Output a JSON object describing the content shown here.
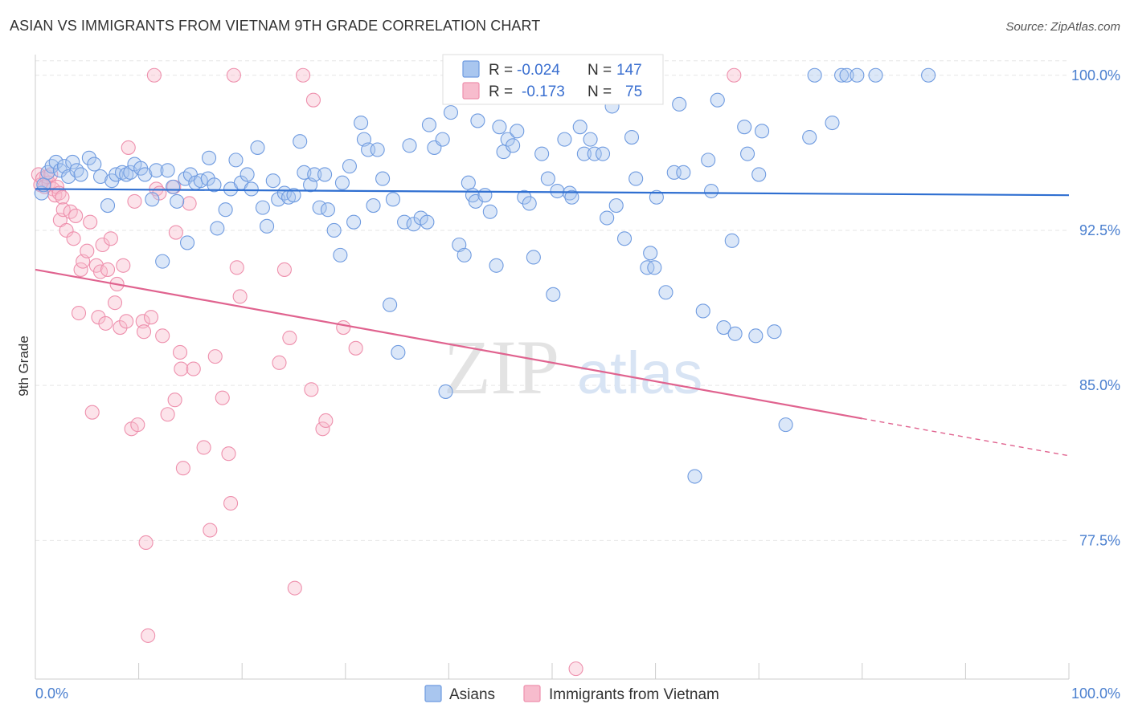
{
  "title": "ASIAN VS IMMIGRANTS FROM VIETNAM 9TH GRADE CORRELATION CHART",
  "source": "Source: ZipAtlas.com",
  "watermark": {
    "zip": "ZIP",
    "atlas": "atlas"
  },
  "stats": {
    "row1": {
      "r_label": "R =",
      "r_value": "-0.024",
      "n_label": "N =",
      "n_value": "147"
    },
    "row2": {
      "r_label": "R =",
      "r_value": "-0.173",
      "n_label": "N =",
      "n_value": "75"
    }
  },
  "legend": {
    "asians": "Asians",
    "vietnam": "Immigrants from Vietnam"
  },
  "colors": {
    "blue_fill": "#a9c6ef",
    "blue_stroke": "#6f9be0",
    "blue_line": "#2f6fd1",
    "pink_fill": "#f7bccd",
    "pink_stroke": "#ee90ad",
    "pink_line": "#e0638f",
    "grid": "#e6e6e6",
    "tick_text": "#4a7fcf"
  },
  "chart_data": {
    "type": "scatter",
    "title": "ASIAN VS IMMIGRANTS FROM VIETNAM 9TH GRADE CORRELATION CHART",
    "xlabel": "",
    "ylabel": "9th Grade",
    "xlim": [
      0,
      100
    ],
    "ylim": [
      70.8,
      101.0
    ],
    "x_tick_labels": [
      "0.0%",
      "100.0%"
    ],
    "y_ticks": [
      100.0,
      92.5,
      85.0,
      77.5
    ],
    "y_tick_labels": [
      "100.0%",
      "92.5%",
      "85.0%",
      "77.5%"
    ],
    "grid": true,
    "legend_position": "bottom",
    "series": [
      {
        "name": "Asians",
        "trend": {
          "x": [
            0,
            100
          ],
          "y": [
            94.5,
            94.2
          ]
        },
        "points": [
          [
            0.6,
            94.3
          ],
          [
            0.8,
            94.7
          ],
          [
            1.2,
            95.3
          ],
          [
            1.6,
            95.6
          ],
          [
            2.0,
            95.8
          ],
          [
            2.4,
            95.4
          ],
          [
            2.8,
            95.6
          ],
          [
            3.2,
            95.1
          ],
          [
            3.6,
            95.8
          ],
          [
            4.0,
            95.4
          ],
          [
            4.4,
            95.2
          ],
          [
            5.2,
            96.0
          ],
          [
            5.7,
            95.7
          ],
          [
            6.3,
            95.1
          ],
          [
            7.0,
            93.7
          ],
          [
            7.4,
            94.9
          ],
          [
            7.8,
            95.2
          ],
          [
            8.4,
            95.3
          ],
          [
            8.8,
            95.2
          ],
          [
            9.2,
            95.3
          ],
          [
            9.6,
            95.7
          ],
          [
            10.2,
            95.5
          ],
          [
            10.6,
            95.2
          ],
          [
            11.3,
            94.0
          ],
          [
            11.7,
            95.4
          ],
          [
            12.3,
            91.0
          ],
          [
            12.8,
            95.4
          ],
          [
            13.3,
            94.6
          ],
          [
            13.7,
            93.9
          ],
          [
            14.5,
            95.0
          ],
          [
            14.7,
            91.9
          ],
          [
            15.0,
            95.2
          ],
          [
            15.5,
            94.8
          ],
          [
            16.0,
            94.9
          ],
          [
            16.7,
            95.0
          ],
          [
            16.8,
            96.0
          ],
          [
            17.3,
            94.7
          ],
          [
            17.6,
            92.6
          ],
          [
            18.4,
            93.5
          ],
          [
            18.9,
            94.5
          ],
          [
            19.4,
            95.9
          ],
          [
            19.9,
            94.8
          ],
          [
            20.5,
            95.2
          ],
          [
            20.9,
            94.5
          ],
          [
            21.5,
            96.5
          ],
          [
            22.0,
            93.6
          ],
          [
            22.4,
            92.7
          ],
          [
            23.0,
            94.9
          ],
          [
            23.5,
            94.0
          ],
          [
            24.1,
            94.3
          ],
          [
            24.5,
            94.1
          ],
          [
            25.0,
            94.2
          ],
          [
            25.6,
            96.8
          ],
          [
            26.0,
            95.3
          ],
          [
            26.6,
            94.7
          ],
          [
            27.0,
            95.2
          ],
          [
            27.5,
            93.6
          ],
          [
            28.0,
            95.2
          ],
          [
            28.3,
            93.5
          ],
          [
            28.9,
            92.5
          ],
          [
            29.5,
            91.3
          ],
          [
            29.7,
            94.8
          ],
          [
            30.4,
            95.6
          ],
          [
            30.8,
            92.9
          ],
          [
            31.5,
            97.7
          ],
          [
            31.8,
            96.9
          ],
          [
            32.2,
            96.4
          ],
          [
            32.7,
            93.7
          ],
          [
            33.1,
            96.4
          ],
          [
            33.6,
            95.0
          ],
          [
            34.3,
            88.9
          ],
          [
            34.6,
            94.0
          ],
          [
            35.1,
            86.6
          ],
          [
            35.7,
            92.9
          ],
          [
            36.2,
            96.6
          ],
          [
            36.6,
            92.8
          ],
          [
            37.3,
            93.1
          ],
          [
            37.9,
            92.9
          ],
          [
            38.1,
            97.6
          ],
          [
            38.6,
            96.5
          ],
          [
            39.4,
            96.9
          ],
          [
            39.7,
            84.7
          ],
          [
            40.2,
            98.2
          ],
          [
            41.0,
            91.8
          ],
          [
            41.5,
            91.3
          ],
          [
            41.9,
            94.8
          ],
          [
            42.3,
            94.2
          ],
          [
            42.6,
            93.9
          ],
          [
            42.8,
            97.8
          ],
          [
            43.5,
            94.2
          ],
          [
            44.0,
            93.4
          ],
          [
            44.6,
            90.8
          ],
          [
            44.9,
            97.5
          ],
          [
            45.3,
            96.3
          ],
          [
            45.7,
            96.9
          ],
          [
            46.2,
            96.6
          ],
          [
            46.6,
            97.3
          ],
          [
            47.3,
            94.1
          ],
          [
            47.8,
            93.8
          ],
          [
            48.2,
            91.2
          ],
          [
            49.0,
            96.2
          ],
          [
            49.6,
            95.0
          ],
          [
            50.1,
            89.4
          ],
          [
            50.5,
            94.4
          ],
          [
            51.2,
            96.9
          ],
          [
            51.7,
            94.3
          ],
          [
            51.9,
            94.1
          ],
          [
            52.7,
            97.5
          ],
          [
            53.1,
            96.2
          ],
          [
            53.7,
            96.9
          ],
          [
            54.1,
            96.2
          ],
          [
            54.9,
            96.2
          ],
          [
            55.3,
            93.1
          ],
          [
            55.8,
            98.5
          ],
          [
            56.2,
            93.7
          ],
          [
            57.0,
            92.1
          ],
          [
            57.7,
            97.0
          ],
          [
            58.1,
            95.0
          ],
          [
            59.2,
            90.7
          ],
          [
            59.5,
            91.4
          ],
          [
            59.9,
            90.7
          ],
          [
            60.1,
            94.1
          ],
          [
            61.0,
            89.5
          ],
          [
            61.8,
            95.3
          ],
          [
            62.3,
            98.6
          ],
          [
            62.7,
            95.3
          ],
          [
            63.8,
            80.6
          ],
          [
            64.6,
            88.6
          ],
          [
            65.1,
            95.9
          ],
          [
            65.4,
            94.4
          ],
          [
            66.0,
            98.8
          ],
          [
            66.6,
            87.8
          ],
          [
            67.4,
            92.0
          ],
          [
            67.7,
            87.5
          ],
          [
            68.6,
            97.5
          ],
          [
            68.9,
            96.2
          ],
          [
            69.7,
            87.4
          ],
          [
            70.0,
            95.2
          ],
          [
            70.3,
            97.3
          ],
          [
            71.5,
            87.6
          ],
          [
            72.6,
            83.1
          ],
          [
            74.9,
            97.0
          ],
          [
            77.1,
            97.7
          ],
          [
            75.4,
            100.0
          ],
          [
            78.0,
            100.0
          ],
          [
            78.5,
            100.0
          ],
          [
            79.5,
            100.0
          ],
          [
            81.3,
            100.0
          ],
          [
            86.4,
            100.0
          ]
        ]
      },
      {
        "name": "Immigrants from Vietnam",
        "trend": {
          "x": [
            0,
            80
          ],
          "y": [
            90.6,
            83.4
          ]
        },
        "trend_dashed": {
          "x": [
            80,
            100
          ],
          "y": [
            83.4,
            81.6
          ]
        },
        "points": [
          [
            0.3,
            95.2
          ],
          [
            0.5,
            94.7
          ],
          [
            0.7,
            95.0
          ],
          [
            0.9,
            94.6
          ],
          [
            1.1,
            95.1
          ],
          [
            1.3,
            94.8
          ],
          [
            1.5,
            95.2
          ],
          [
            1.7,
            94.5
          ],
          [
            1.9,
            94.2
          ],
          [
            2.1,
            94.6
          ],
          [
            2.3,
            94.3
          ],
          [
            2.6,
            94.1
          ],
          [
            2.4,
            93.0
          ],
          [
            2.7,
            93.5
          ],
          [
            3.0,
            92.5
          ],
          [
            3.4,
            93.4
          ],
          [
            3.7,
            92.1
          ],
          [
            3.9,
            93.2
          ],
          [
            4.2,
            88.5
          ],
          [
            4.4,
            90.6
          ],
          [
            4.6,
            91.0
          ],
          [
            5.0,
            91.5
          ],
          [
            5.3,
            92.9
          ],
          [
            5.5,
            83.7
          ],
          [
            5.9,
            90.8
          ],
          [
            6.1,
            88.3
          ],
          [
            6.3,
            90.5
          ],
          [
            6.5,
            91.8
          ],
          [
            6.8,
            88.0
          ],
          [
            7.0,
            90.6
          ],
          [
            7.3,
            92.1
          ],
          [
            7.7,
            89.0
          ],
          [
            7.9,
            89.9
          ],
          [
            8.2,
            87.8
          ],
          [
            8.5,
            90.8
          ],
          [
            8.8,
            88.1
          ],
          [
            9.0,
            96.5
          ],
          [
            9.3,
            82.9
          ],
          [
            9.6,
            93.9
          ],
          [
            9.9,
            83.1
          ],
          [
            10.4,
            88.1
          ],
          [
            10.5,
            87.6
          ],
          [
            10.7,
            77.4
          ],
          [
            10.9,
            72.9
          ],
          [
            11.2,
            88.3
          ],
          [
            11.7,
            94.5
          ],
          [
            12.0,
            94.3
          ],
          [
            12.3,
            87.4
          ],
          [
            12.8,
            83.6
          ],
          [
            13.4,
            94.6
          ],
          [
            13.5,
            84.3
          ],
          [
            13.6,
            92.4
          ],
          [
            14.0,
            86.6
          ],
          [
            14.1,
            85.8
          ],
          [
            14.3,
            81.0
          ],
          [
            14.9,
            93.8
          ],
          [
            15.3,
            85.8
          ],
          [
            16.3,
            82.0
          ],
          [
            16.9,
            78.0
          ],
          [
            17.4,
            86.4
          ],
          [
            18.1,
            84.4
          ],
          [
            18.7,
            81.7
          ],
          [
            18.9,
            79.3
          ],
          [
            19.2,
            100.0
          ],
          [
            19.5,
            90.7
          ],
          [
            19.8,
            89.3
          ],
          [
            23.6,
            86.1
          ],
          [
            24.1,
            90.6
          ],
          [
            24.6,
            87.3
          ],
          [
            25.1,
            75.2
          ],
          [
            26.7,
            84.8
          ],
          [
            26.9,
            98.8
          ],
          [
            27.8,
            82.9
          ],
          [
            28.1,
            83.3
          ],
          [
            29.8,
            87.8
          ],
          [
            31.0,
            86.8
          ],
          [
            52.3,
            71.3
          ],
          [
            11.5,
            100.0
          ],
          [
            25.9,
            100.0
          ],
          [
            67.6,
            100.0
          ]
        ]
      }
    ]
  }
}
